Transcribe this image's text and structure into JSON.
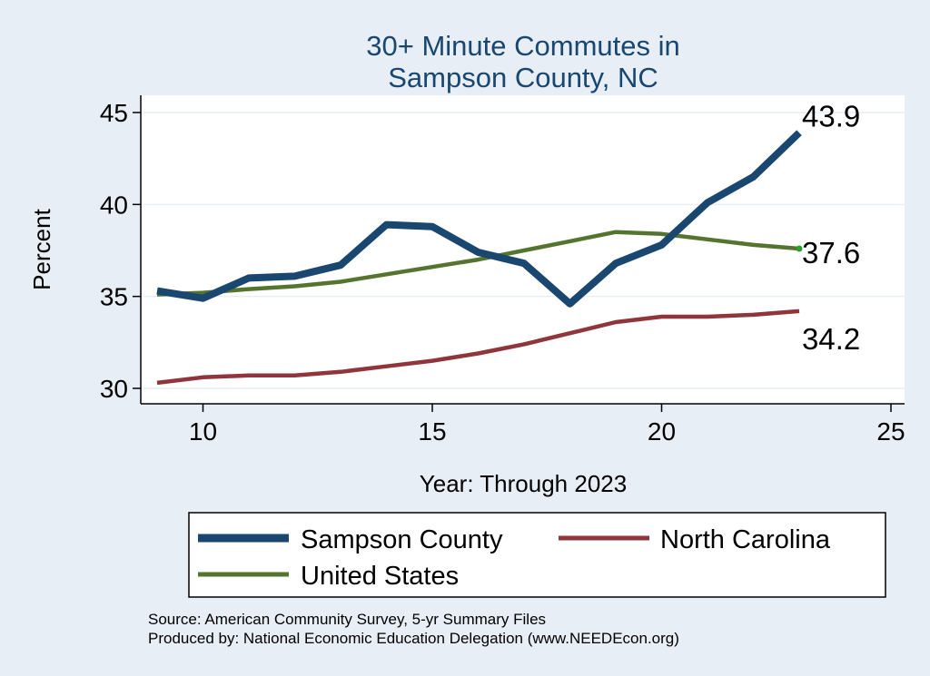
{
  "chart_data": {
    "type": "line",
    "title": [
      "30+ Minute Commutes in",
      "Sampson County, NC"
    ],
    "xlabel": "Year: Through 2023",
    "ylabel": "Percent",
    "xlim": [
      9,
      25
    ],
    "ylim": [
      30,
      45
    ],
    "xticks": [
      10,
      15,
      20,
      25
    ],
    "yticks": [
      30,
      35,
      40,
      45
    ],
    "grid": true,
    "series": [
      {
        "name": "Sampson County",
        "color": "#1a476f",
        "x": [
          9,
          10,
          11,
          12,
          13,
          14,
          15,
          16,
          17,
          18,
          19,
          20,
          21,
          22,
          23
        ],
        "values": [
          35.3,
          34.9,
          36.0,
          36.1,
          36.7,
          38.9,
          38.8,
          37.4,
          36.8,
          34.6,
          36.8,
          37.8,
          40.1,
          41.5,
          43.9
        ],
        "end_label": "43.9"
      },
      {
        "name": "North Carolina",
        "color": "#90353b",
        "x": [
          9,
          10,
          11,
          12,
          13,
          14,
          15,
          16,
          17,
          18,
          19,
          20,
          21,
          22,
          23
        ],
        "values": [
          30.3,
          30.6,
          30.7,
          30.7,
          30.9,
          31.2,
          31.5,
          31.9,
          32.4,
          33.0,
          33.6,
          33.9,
          33.9,
          34.0,
          34.2
        ],
        "end_label": "34.2"
      },
      {
        "name": "United States",
        "color": "#55752f",
        "x": [
          9,
          10,
          11,
          12,
          13,
          14,
          15,
          16,
          17,
          18,
          19,
          20,
          21,
          22,
          23
        ],
        "values": [
          35.1,
          35.2,
          35.4,
          35.55,
          35.8,
          36.2,
          36.6,
          37.0,
          37.5,
          38.0,
          38.5,
          38.4,
          38.1,
          37.8,
          37.6
        ],
        "end_label": "37.6"
      }
    ],
    "legend": [
      "Sampson County",
      "North Carolina",
      "United States"
    ]
  },
  "footer": {
    "source": "Source: American Community Survey, 5-yr Summary Files",
    "produced": "Produced by: National Economic Education Delegation (www.NEEDEcon.org)"
  }
}
